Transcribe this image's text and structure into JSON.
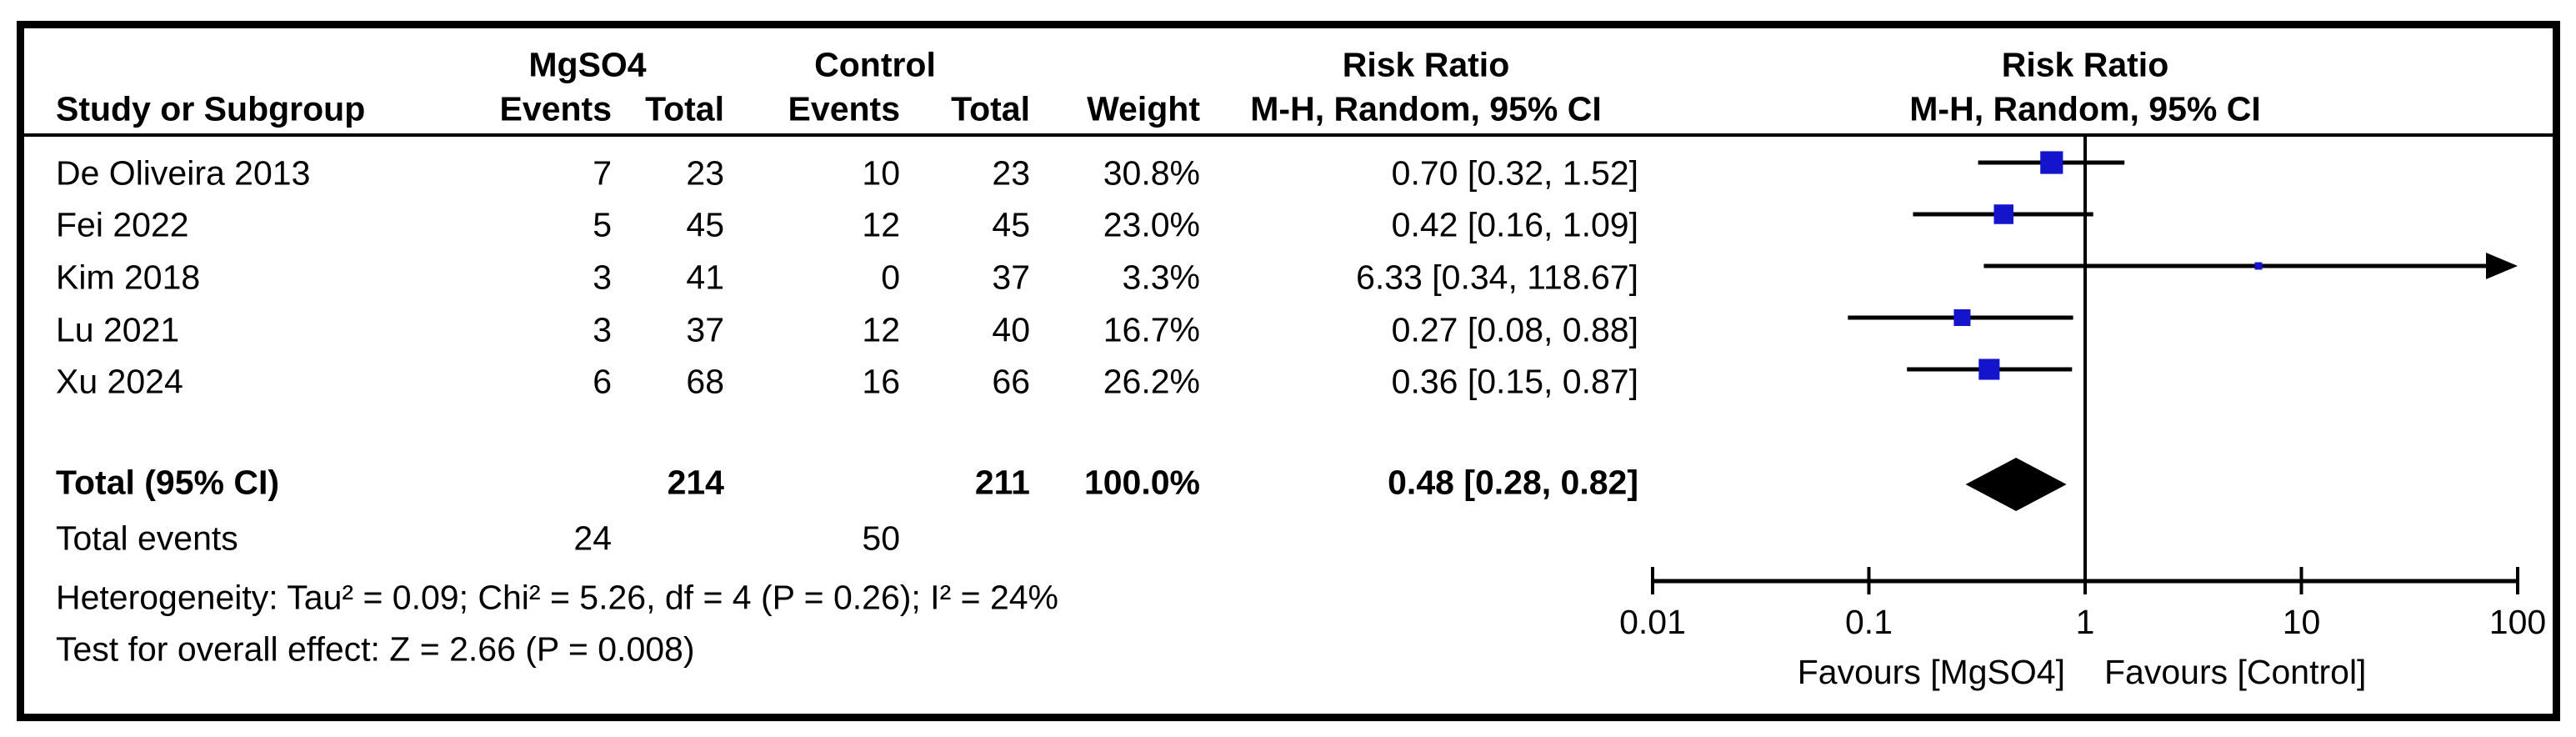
{
  "header": {
    "group_mgso4": "MgSO4",
    "group_control": "Control",
    "rr_title": "Risk Ratio",
    "rr_sub": "M-H, Random, 95% CI",
    "plot_title": "Risk Ratio",
    "plot_sub": "M-H, Random, 95% CI",
    "study": "Study or Subgroup",
    "events": "Events",
    "total": "Total",
    "weight": "Weight"
  },
  "rows": [
    {
      "study": "De Oliveira 2013",
      "e1": "7",
      "t1": "23",
      "e2": "10",
      "t2": "23",
      "weight": "30.8%",
      "rr": "0.70 [0.32, 1.52]"
    },
    {
      "study": "Fei 2022",
      "e1": "5",
      "t1": "45",
      "e2": "12",
      "t2": "45",
      "weight": "23.0%",
      "rr": "0.42 [0.16, 1.09]"
    },
    {
      "study": "Kim 2018",
      "e1": "3",
      "t1": "41",
      "e2": "0",
      "t2": "37",
      "weight": "3.3%",
      "rr": "6.33 [0.34, 118.67]"
    },
    {
      "study": "Lu 2021",
      "e1": "3",
      "t1": "37",
      "e2": "12",
      "t2": "40",
      "weight": "16.7%",
      "rr": "0.27 [0.08, 0.88]"
    },
    {
      "study": "Xu 2024",
      "e1": "6",
      "t1": "68",
      "e2": "16",
      "t2": "66",
      "weight": "26.2%",
      "rr": "0.36 [0.15, 0.87]"
    }
  ],
  "totals": {
    "label": "Total (95% CI)",
    "t1": "214",
    "t2": "211",
    "weight": "100.0%",
    "rr": "0.48 [0.28, 0.82]",
    "events_label": "Total events",
    "e1": "24",
    "e2": "50"
  },
  "stats": {
    "heterogeneity": "Heterogeneity: Tau² = 0.09; Chi² = 5.26, df = 4 (P = 0.26); I² = 24%",
    "overall_effect": "Test for overall effect: Z = 2.66 (P = 0.008)"
  },
  "chart_data": {
    "type": "forest",
    "effect_measure": "Risk Ratio",
    "method": "M-H, Random, 95% CI",
    "x_axis": {
      "scale": "log",
      "range": [
        0.01,
        100
      ],
      "ticks": [
        0.01,
        0.1,
        1,
        10,
        100
      ],
      "tick_labels": [
        "0.01",
        "0.1",
        "1",
        "10",
        "100"
      ]
    },
    "studies": [
      {
        "name": "De Oliveira 2013",
        "rr": 0.7,
        "ci_low": 0.32,
        "ci_high": 1.52,
        "weight_pct": 30.8
      },
      {
        "name": "Fei 2022",
        "rr": 0.42,
        "ci_low": 0.16,
        "ci_high": 1.09,
        "weight_pct": 23.0
      },
      {
        "name": "Kim 2018",
        "rr": 6.33,
        "ci_low": 0.34,
        "ci_high": 118.67,
        "weight_pct": 3.3
      },
      {
        "name": "Lu 2021",
        "rr": 0.27,
        "ci_low": 0.08,
        "ci_high": 0.88,
        "weight_pct": 16.7
      },
      {
        "name": "Xu 2024",
        "rr": 0.36,
        "ci_low": 0.15,
        "ci_high": 0.87,
        "weight_pct": 26.2
      }
    ],
    "total": {
      "rr": 0.48,
      "ci_low": 0.28,
      "ci_high": 0.82
    },
    "favours_left": "Favours [MgSO4]",
    "favours_right": "Favours [Control]",
    "marker_color": "#1414cc",
    "line_color": "#000000"
  }
}
